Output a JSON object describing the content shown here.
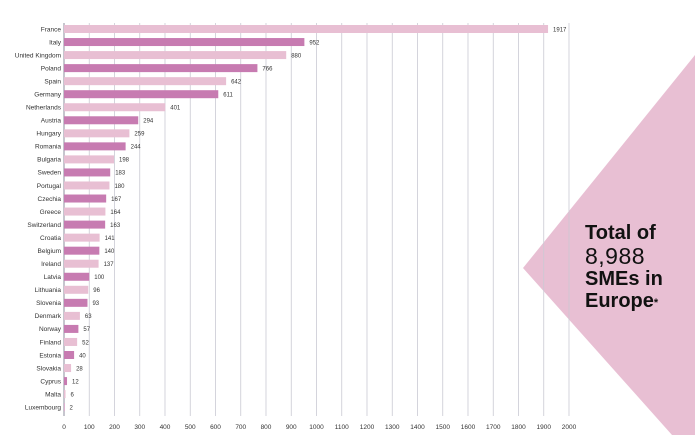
{
  "chart_data": {
    "type": "bar",
    "orientation": "horizontal",
    "categories": [
      "France",
      "Italy",
      "United Kingdom",
      "Poland",
      "Spain",
      "Germany",
      "Netherlands",
      "Austria",
      "Hungary",
      "Romania",
      "Bulgaria",
      "Sweden",
      "Portugal",
      "Czechia",
      "Greece",
      "Switzerland",
      "Croatia",
      "Belgium",
      "Ireland",
      "Latvia",
      "Lithuania",
      "Slovenia",
      "Denmark",
      "Norway",
      "Finland",
      "Estonia",
      "Slovakia",
      "Cyprus",
      "Malta",
      "Luxembourg"
    ],
    "values": [
      1917,
      952,
      880,
      766,
      642,
      611,
      401,
      294,
      259,
      244,
      198,
      183,
      180,
      167,
      164,
      163,
      141,
      140,
      137,
      100,
      96,
      93,
      63,
      57,
      52,
      40,
      28,
      12,
      6,
      2
    ],
    "value_labels": [
      "1917",
      "952",
      "880",
      "766",
      "642",
      "611",
      "401",
      "294",
      "259",
      "244",
      "198",
      "183",
      "180",
      "167",
      "164",
      "163",
      "141",
      "140",
      "137",
      "100",
      "96",
      "93",
      "63",
      "57",
      "52",
      "40",
      "28",
      "12",
      "6",
      "2"
    ],
    "bar_shades": [
      "light",
      "dark",
      "light",
      "dark",
      "light",
      "dark",
      "light",
      "dark",
      "light",
      "dark",
      "light",
      "dark",
      "light",
      "dark",
      "light",
      "dark",
      "light",
      "dark",
      "light",
      "dark",
      "light",
      "dark",
      "light",
      "dark",
      "light",
      "dark",
      "light",
      "dark",
      "light",
      "dark"
    ],
    "xlim": [
      0,
      2000
    ],
    "xticks": [
      "0",
      "100",
      "200",
      "300",
      "400",
      "500",
      "600",
      "700",
      "800",
      "900",
      "1000",
      "1100",
      "1200",
      "1300",
      "1400",
      "1500",
      "1600",
      "1700",
      "1800",
      "1900",
      "2000"
    ],
    "xtick_values": [
      0,
      100,
      200,
      300,
      400,
      500,
      600,
      700,
      800,
      900,
      1000,
      1100,
      1200,
      1300,
      1400,
      1500,
      1600,
      1700,
      1800,
      1900,
      2000
    ],
    "grid": true,
    "title": "",
    "xlabel": "",
    "ylabel": ""
  },
  "callout": {
    "line1": "Total of",
    "line2": "8,988",
    "line3": "SMEs in",
    "line4": "Europe",
    "footnote_mark": "*"
  },
  "colors": {
    "bar_dark": "#c77bb1",
    "bar_light": "#e8bfd3",
    "callout_fill": "#e8bfd3",
    "grid": "#c9c9d3",
    "axis": "#8c8c9c",
    "text": "#333333"
  }
}
